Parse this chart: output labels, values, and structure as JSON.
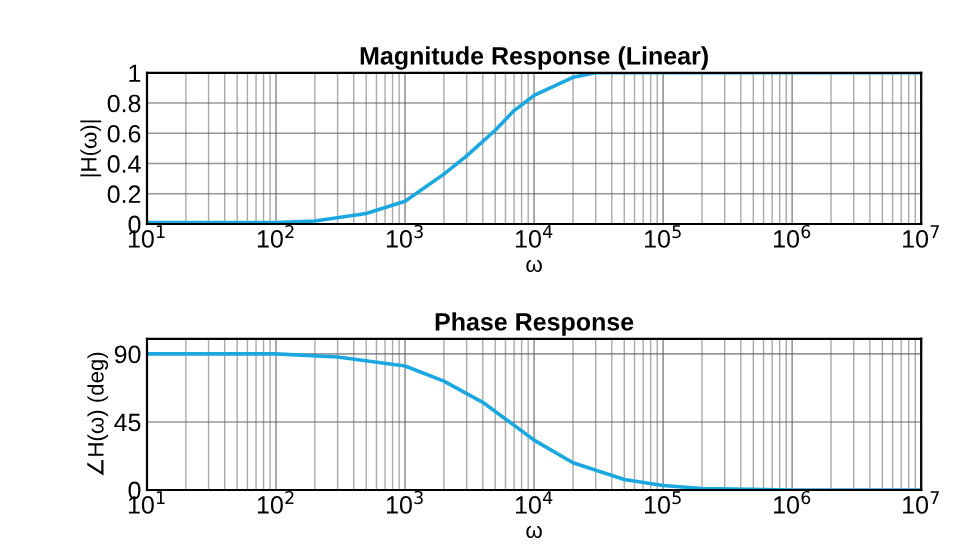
{
  "chart_data": [
    {
      "type": "line",
      "title": "Magnitude Response (Linear)",
      "xlabel": "ω",
      "ylabel": "|H(ω)|",
      "log": "x",
      "grid": true,
      "xlim": [
        10,
        10000000
      ],
      "xticks": [
        {
          "value": 10,
          "label": "10$^{1}$"
        },
        {
          "value": 100,
          "label": "10$^{2}$"
        },
        {
          "value": 1000,
          "label": "10$^{3}$"
        },
        {
          "value": 10000,
          "label": "10$^{4}$"
        },
        {
          "value": 100000,
          "label": "10$^{5}$"
        },
        {
          "value": 1000000,
          "label": "10$^{6}$"
        },
        {
          "value": 10000000,
          "label": "10$^{7}$"
        }
      ],
      "ylim": [
        0,
        1
      ],
      "yticks": [
        0,
        0.2,
        0.4,
        0.6,
        0.8,
        1
      ],
      "series": [
        {
          "color": "#1ba8e0",
          "x": [
            10,
            100,
            200,
            500,
            1000,
            2000,
            3000,
            5000,
            7000,
            10000,
            20000,
            30000,
            100000,
            10000000
          ],
          "values": [
            0.01,
            0.01,
            0.02,
            0.07,
            0.15,
            0.33,
            0.45,
            0.62,
            0.75,
            0.85,
            0.97,
            1.0,
            1.0,
            1.0
          ]
        }
      ]
    },
    {
      "type": "line",
      "title": "Phase Response",
      "xlabel": "ω",
      "ylabel": "∠H(ω) (deg)",
      "log": "x",
      "grid": true,
      "xlim": [
        10,
        10000000
      ],
      "xticks": [
        {
          "value": 10,
          "label": "10$^{1}$"
        },
        {
          "value": 100,
          "label": "10$^{2}$"
        },
        {
          "value": 1000,
          "label": "10$^{3}$"
        },
        {
          "value": 10000,
          "label": "10$^{4}$"
        },
        {
          "value": 100000,
          "label": "10$^{5}$"
        },
        {
          "value": 1000000,
          "label": "10$^{6}$"
        },
        {
          "value": 10000000,
          "label": "10$^{7}$"
        }
      ],
      "ylim": [
        0,
        100
      ],
      "yticks": [
        0,
        45,
        90
      ],
      "series": [
        {
          "color": "#1ba8e0",
          "x": [
            10,
            100,
            300,
            1000,
            2000,
            4000,
            6000,
            10000,
            20000,
            50000,
            100000,
            200000,
            1000000,
            10000000
          ],
          "values": [
            90,
            90,
            88,
            82,
            72,
            58,
            47,
            33,
            18,
            7,
            3,
            1,
            0,
            0
          ]
        }
      ]
    }
  ]
}
